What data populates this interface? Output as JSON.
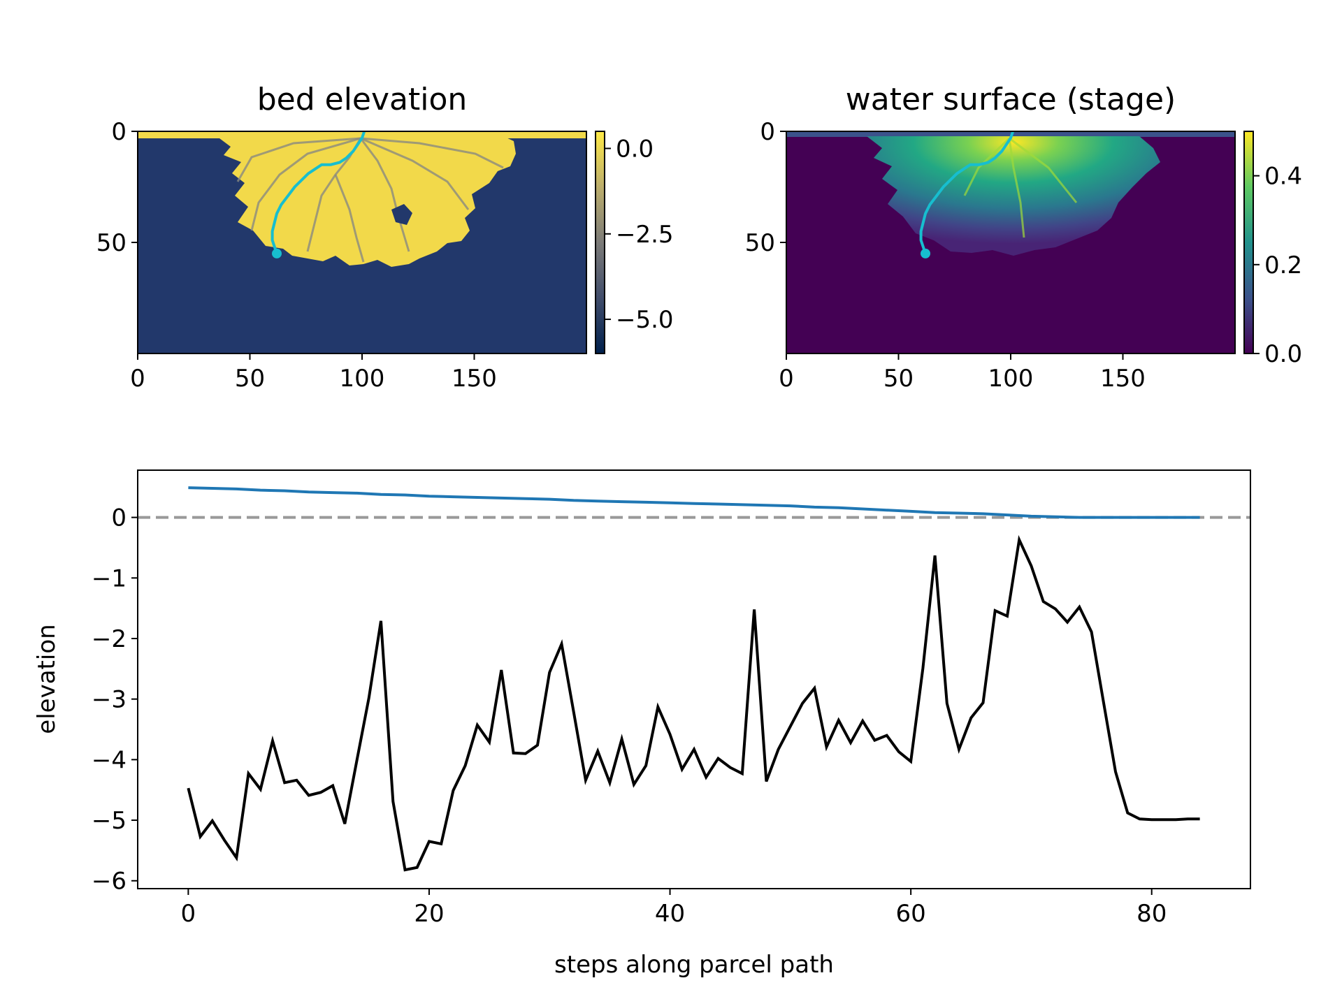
{
  "chart_data": [
    {
      "type": "heatmap",
      "title": "bed elevation",
      "xticks": [
        "0",
        "50",
        "100",
        "150"
      ],
      "yticks": [
        "0",
        "50"
      ],
      "colorbar_ticks": [
        "0.0",
        "−2.5",
        "−5.0"
      ],
      "xlim": [
        0,
        200
      ],
      "ylim": [
        100,
        0
      ],
      "colorbar_range": [
        -6,
        0.5
      ],
      "colormap": "cividis",
      "colors": {
        "basin": "#22386b",
        "deposit": "#f2d94a",
        "path": "#17becf"
      },
      "path": {
        "x": [
          101,
          100,
          98,
          96,
          93,
          90,
          86,
          82,
          79,
          76,
          73,
          70,
          67,
          64,
          62,
          61,
          60,
          60,
          61,
          62
        ],
        "y": [
          0,
          3,
          6,
          9,
          12,
          14,
          15,
          15,
          17,
          19,
          22,
          25,
          29,
          33,
          37,
          41,
          45,
          49,
          52,
          55
        ]
      }
    },
    {
      "type": "heatmap",
      "title": "water surface (stage)",
      "xticks": [
        "0",
        "50",
        "100",
        "150"
      ],
      "yticks": [
        "0",
        "50"
      ],
      "colorbar_ticks": [
        "0.0",
        "0.2",
        "0.4"
      ],
      "xlim": [
        0,
        200
      ],
      "ylim": [
        100,
        0
      ],
      "colorbar_range": [
        0,
        0.5
      ],
      "colormap": "viridis",
      "colors": {
        "background": "#440154",
        "path": "#17becf"
      },
      "path": {
        "x": [
          101,
          100,
          98,
          96,
          93,
          90,
          86,
          82,
          79,
          76,
          73,
          70,
          67,
          64,
          62,
          61,
          60,
          60,
          61,
          62
        ],
        "y": [
          0,
          3,
          6,
          9,
          12,
          14,
          15,
          15,
          17,
          19,
          22,
          25,
          29,
          33,
          37,
          41,
          45,
          49,
          52,
          55
        ]
      }
    },
    {
      "type": "line",
      "xlabel": "steps along parcel path",
      "ylabel": "elevation",
      "xticks": [
        "0",
        "20",
        "40",
        "60",
        "80"
      ],
      "yticks": [
        "0",
        "−1",
        "−2",
        "−3",
        "−4",
        "−5",
        "−6"
      ],
      "xlim": [
        -4.2,
        88.2
      ],
      "ylim": [
        -6.13,
        0.78
      ],
      "reference_line": {
        "y": 0,
        "style": "dashed",
        "color": "#999999"
      },
      "series": [
        {
          "color": "#1f77b4",
          "x": [
            0,
            2,
            4,
            6,
            8,
            10,
            12,
            14,
            16,
            18,
            20,
            22,
            24,
            26,
            28,
            30,
            32,
            34,
            36,
            38,
            40,
            42,
            44,
            46,
            48,
            50,
            52,
            54,
            56,
            58,
            60,
            62,
            64,
            66,
            68,
            70,
            72,
            74,
            76,
            78,
            80,
            82,
            84
          ],
          "y": [
            0.49,
            0.48,
            0.47,
            0.45,
            0.44,
            0.42,
            0.41,
            0.4,
            0.38,
            0.37,
            0.35,
            0.34,
            0.33,
            0.32,
            0.31,
            0.3,
            0.28,
            0.27,
            0.26,
            0.25,
            0.24,
            0.23,
            0.22,
            0.21,
            0.2,
            0.19,
            0.17,
            0.16,
            0.14,
            0.12,
            0.1,
            0.08,
            0.07,
            0.06,
            0.04,
            0.02,
            0.01,
            0.0,
            0.0,
            0.0,
            0.0,
            0.0,
            0.0
          ]
        },
        {
          "color": "#000000",
          "x": [
            0,
            1,
            2,
            3,
            4,
            5,
            6,
            7,
            8,
            9,
            10,
            11,
            12,
            13,
            14,
            15,
            16,
            17,
            18,
            19,
            20,
            21,
            22,
            23,
            24,
            25,
            26,
            27,
            28,
            29,
            30,
            31,
            32,
            33,
            34,
            35,
            36,
            37,
            38,
            39,
            40,
            41,
            42,
            43,
            44,
            45,
            46,
            47,
            48,
            49,
            50,
            51,
            52,
            53,
            54,
            55,
            56,
            57,
            58,
            59,
            60,
            61,
            62,
            63,
            64,
            65,
            66,
            67,
            68,
            69,
            70,
            71,
            72,
            73,
            74,
            75,
            76,
            77,
            78,
            79,
            80,
            81,
            82,
            83,
            84
          ],
          "y": [
            -4.47,
            -5.27,
            -5.01,
            -5.33,
            -5.62,
            -4.23,
            -4.49,
            -3.69,
            -4.38,
            -4.34,
            -4.59,
            -4.54,
            -4.43,
            -5.06,
            -4.01,
            -2.98,
            -1.71,
            -4.69,
            -5.82,
            -5.78,
            -5.35,
            -5.39,
            -4.51,
            -4.1,
            -3.43,
            -3.71,
            -2.52,
            -3.89,
            -3.9,
            -3.76,
            -2.56,
            -2.09,
            -3.21,
            -4.34,
            -3.86,
            -4.38,
            -3.66,
            -4.41,
            -4.1,
            -3.13,
            -3.58,
            -4.16,
            -3.83,
            -4.29,
            -3.98,
            -4.13,
            -4.23,
            -1.52,
            -4.36,
            -3.83,
            -3.45,
            -3.07,
            -2.82,
            -3.79,
            -3.35,
            -3.72,
            -3.36,
            -3.68,
            -3.6,
            -3.87,
            -4.03,
            -2.49,
            -0.63,
            -3.07,
            -3.83,
            -3.31,
            -3.06,
            -1.54,
            -1.63,
            -0.37,
            -0.8,
            -1.39,
            -1.51,
            -1.73,
            -1.48,
            -1.89,
            -3.05,
            -4.2,
            -4.88,
            -4.98,
            -4.99,
            -4.99,
            -4.99,
            -4.98,
            -4.98
          ]
        }
      ]
    }
  ]
}
